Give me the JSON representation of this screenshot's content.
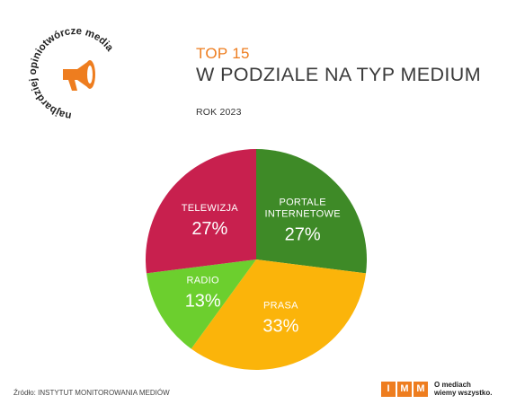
{
  "header": {
    "top": "TOP 15",
    "main": "W PODZIALE NA TYP MEDIUM",
    "sub": "ROK 2023"
  },
  "badge": {
    "text": "najbardziej opiniotwórcze media",
    "icon": "megaphone-icon",
    "color": "#ee7d1f"
  },
  "chart_data": {
    "type": "pie",
    "series": [
      {
        "name": "PORTALE INTERNETOWE",
        "label_lines": [
          "PORTALE",
          "INTERNETOWE"
        ],
        "value": 27,
        "pct": "27%",
        "color": "#3e8a27"
      },
      {
        "name": "PRASA",
        "label_lines": [
          "PRASA"
        ],
        "value": 33,
        "pct": "33%",
        "color": "#fbb40a"
      },
      {
        "name": "RADIO",
        "label_lines": [
          "RADIO"
        ],
        "value": 13,
        "pct": "13%",
        "color": "#6ccf2e"
      },
      {
        "name": "TELEWIZJA",
        "label_lines": [
          "TELEWIZJA"
        ],
        "value": 27,
        "pct": "27%",
        "color": "#c8204e"
      }
    ]
  },
  "footer": {
    "source": "Źródło: INSTYTUT MONITOROWANIA MEDIÓW",
    "logo_letters": [
      "I",
      "M",
      "M"
    ],
    "tagline_1": "O mediach",
    "tagline_2": "wiemy wszystko."
  }
}
